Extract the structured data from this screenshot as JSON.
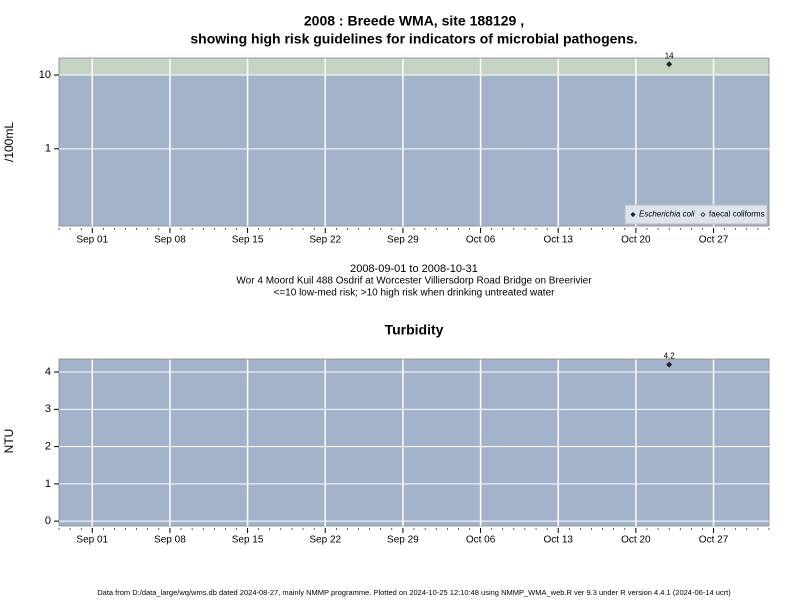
{
  "chart_data": [
    {
      "type": "scatter",
      "title": "2008 : Breede WMA, site 188129 ,",
      "subtitle": "showing high risk guidelines for indicators of microbial pathogens.",
      "y_label": "/100mL",
      "annotations": [
        "2008-09-01 to 2008-10-31",
        "Wor 4 Moord Kuil 488 Osdrif at Worcester Villiersdorp Road Bridge on Breerivier",
        "<=10 low-med risk; >10 high risk when drinking untreated water"
      ],
      "x": [
        "2008-10-23"
      ],
      "series": [
        {
          "name": "Escherichia coli",
          "color": "#222222",
          "values": [
            14
          ]
        },
        {
          "name": "faecal coliforms",
          "color": "#222222",
          "values": [
            null
          ]
        }
      ],
      "xlim": [
        "2008-08-29",
        "2008-11-01"
      ],
      "xticks": [
        {
          "value": "2008-09-01",
          "label": "Sep 01"
        },
        {
          "value": "2008-09-08",
          "label": "Sep 08"
        },
        {
          "value": "2008-09-15",
          "label": "Sep 15"
        },
        {
          "value": "2008-09-22",
          "label": "Sep 22"
        },
        {
          "value": "2008-09-29",
          "label": "Sep 29"
        },
        {
          "value": "2008-10-06",
          "label": "Oct 06"
        },
        {
          "value": "2008-10-13",
          "label": "Oct 13"
        },
        {
          "value": "2008-10-20",
          "label": "Oct 20"
        },
        {
          "value": "2008-10-27",
          "label": "Oct 27"
        }
      ],
      "ylim": [
        0.09,
        17
      ],
      "yticks": [
        1,
        10
      ],
      "log_y": true,
      "grid": true,
      "risk_threshold": 10,
      "risk_color": "#c5d3c4",
      "panel_color": "#a3b3cc",
      "legend": "bottom-right"
    },
    {
      "type": "scatter",
      "title": "Turbidity",
      "y_label": "NTU",
      "x": [
        "2008-10-23"
      ],
      "series": [
        {
          "name": "Turbidity",
          "color": "#222222",
          "values": [
            4.2
          ]
        }
      ],
      "xlim": [
        "2008-08-29",
        "2008-11-01"
      ],
      "xticks": [
        {
          "value": "2008-09-01",
          "label": "Sep 01"
        },
        {
          "value": "2008-09-08",
          "label": "Sep 08"
        },
        {
          "value": "2008-09-15",
          "label": "Sep 15"
        },
        {
          "value": "2008-09-22",
          "label": "Sep 22"
        },
        {
          "value": "2008-09-29",
          "label": "Sep 29"
        },
        {
          "value": "2008-10-06",
          "label": "Oct 06"
        },
        {
          "value": "2008-10-13",
          "label": "Oct 13"
        },
        {
          "value": "2008-10-20",
          "label": "Oct 20"
        },
        {
          "value": "2008-10-27",
          "label": "Oct 27"
        }
      ],
      "ylim": [
        -0.13,
        4.35
      ],
      "yticks": [
        0,
        1,
        2,
        3,
        4
      ],
      "log_y": false,
      "grid": true,
      "panel_color": "#a3b3cc"
    }
  ],
  "footer": "Data from D:/data_large/wq/wms.db dated 2024-08-27, mainly NMMP programme. Plotted on 2024-10-25 12:10:48 using NMMP_WMA_web.R ver 9.3 under R version 4.4.1 (2024-06-14 ucrt)"
}
